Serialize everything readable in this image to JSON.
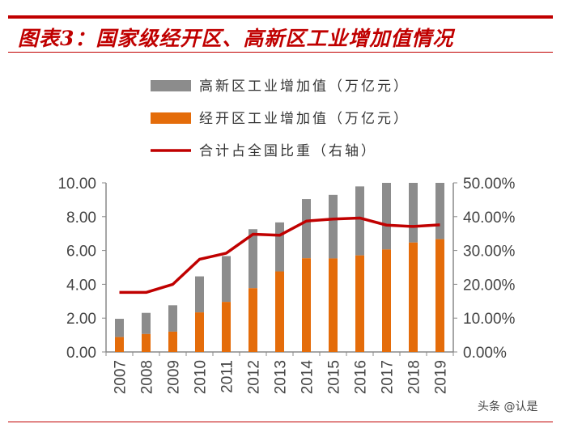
{
  "title": "图表3：国家级经开区、高新区工业增加值情况",
  "watermark": "头条 @认是",
  "chart_data": {
    "type": "bar",
    "stacked": true,
    "title": "图表3：国家级经开区、高新区工业增加值情况",
    "categories": [
      "2007",
      "2008",
      "2009",
      "2010",
      "2011",
      "2012",
      "2013",
      "2014",
      "2015",
      "2016",
      "2017",
      "2018",
      "2019"
    ],
    "series": [
      {
        "name": "经开区工业增加值（万亿元）",
        "type": "bar",
        "axis": "left",
        "color": "#e46c0a",
        "values": [
          0.88,
          1.06,
          1.2,
          2.34,
          2.96,
          3.77,
          4.76,
          5.54,
          5.53,
          5.71,
          6.06,
          6.47,
          6.67
        ]
      },
      {
        "name": "高新区工业增加值（万亿元）",
        "type": "bar",
        "axis": "left",
        "color": "#8c8c8c",
        "values": [
          1.08,
          1.25,
          1.56,
          2.13,
          2.71,
          3.49,
          2.9,
          3.5,
          3.76,
          4.08,
          4.2,
          4.0,
          4.1
        ]
      },
      {
        "name": "合计占全国比重（右轴）",
        "type": "line",
        "axis": "right",
        "color": "#c00000",
        "values": [
          17.6,
          17.6,
          20.0,
          27.4,
          29.2,
          34.8,
          34.5,
          38.7,
          39.3,
          39.6,
          37.5,
          37.1,
          37.6
        ]
      }
    ],
    "left_axis": {
      "ylim": [
        0,
        10
      ],
      "ticks": [
        "0.00",
        "2.00",
        "4.00",
        "6.00",
        "8.00",
        "10.00"
      ]
    },
    "right_axis": {
      "ylim": [
        0,
        50
      ],
      "ticks": [
        "0.00%",
        "10.00%",
        "20.00%",
        "30.00%",
        "40.00%",
        "50.00%"
      ]
    },
    "legend_placement": "top",
    "grid": false
  }
}
